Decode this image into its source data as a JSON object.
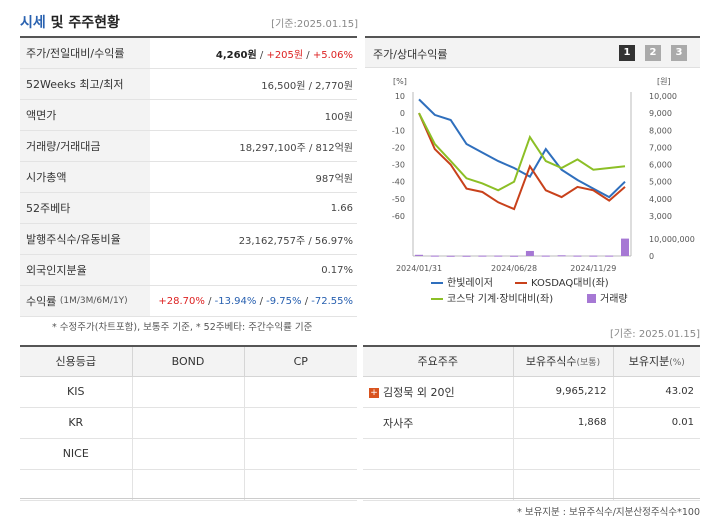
{
  "header": {
    "title_part1": "시세",
    "title_part2": " 및 주주현황",
    "date": "[기준:2025.01.15]"
  },
  "summary": {
    "rows": [
      {
        "label": "주가/전일대비/수익률",
        "price": "4,260원",
        "sep1": " / ",
        "change": "+205원",
        "sep2": " / ",
        "rate": "+5.06%"
      },
      {
        "label": "52Weeks 최고/최저",
        "value": "16,500원 / 2,770원"
      },
      {
        "label": "액면가",
        "value": "100원"
      },
      {
        "label": "거래량/거래대금",
        "value": "18,297,100주 / 812억원"
      },
      {
        "label": "시가총액",
        "value": "987억원"
      },
      {
        "label": "52주베타",
        "value": "1.66"
      },
      {
        "label": "발행주식수/유동비율",
        "value": "23,162,757주 / 56.97%"
      },
      {
        "label": "외국인지분율",
        "value": "0.17%"
      },
      {
        "label": "수익률",
        "label_sub": "(1M/3M/6M/1Y)",
        "r1": "+28.70%",
        "r2": "-13.94%",
        "r3": "-9.75%",
        "r4": "-72.55%",
        "sep": " / "
      }
    ],
    "footnote": "* 수정주가(차트포함), 보통주 기준, * 52주베타: 주간수익률 기준"
  },
  "chart": {
    "title": "주가/상대수익률",
    "pages": [
      "1",
      "2",
      "3"
    ],
    "left_unit": "[%]",
    "right_unit": "[원]",
    "left_ticks": [
      "10",
      "0",
      "-10",
      "-20",
      "-30",
      "-40",
      "-50",
      "-60"
    ],
    "right_ticks": [
      "10,000",
      "9,000",
      "8,000",
      "7,000",
      "6,000",
      "5,000",
      "4,000",
      "3,000"
    ],
    "volume_tick": "10,000,000",
    "volume_zero": "0",
    "x_ticks": [
      "2024/01/31",
      "2024/06/28",
      "2024/11/29"
    ],
    "legend": {
      "s1": "한빛레이저",
      "s2": "KOSDAQ대비(좌)",
      "s3": "코스닥 기계·장비대비(좌)",
      "s4": "거래량"
    },
    "colors": {
      "s1": "#2f6fbd",
      "s2": "#c8411b",
      "s3": "#8cbf26",
      "s4": "#a678d4"
    }
  },
  "chart_data": {
    "type": "line",
    "x": [
      "2024/01/31",
      "",
      "",
      "",
      "",
      "",
      "2024/06/28",
      "",
      "",
      "",
      "",
      "2024/11/29",
      "",
      ""
    ],
    "series": [
      {
        "name": "한빛레이저",
        "axis": "right",
        "values": [
          9800,
          8900,
          8600,
          7200,
          6700,
          6200,
          5800,
          5300,
          6900,
          5700,
          5100,
          4600,
          4100,
          5000
        ]
      },
      {
        "name": "KOSDAQ대비(좌)",
        "axis": "left",
        "values": [
          0,
          -21,
          -30,
          -44,
          -46,
          -52,
          -56,
          -31,
          -45,
          -49,
          -43,
          -45,
          -51,
          -43
        ]
      },
      {
        "name": "코스닥 기계·장비대비(좌)",
        "axis": "left",
        "values": [
          0,
          -18,
          -28,
          -38,
          -41,
          -45,
          -40,
          -14,
          -28,
          -32,
          -27,
          -33,
          -32,
          -31
        ]
      },
      {
        "name": "거래량",
        "axis": "volume",
        "values": [
          1000000,
          300000,
          200000,
          200000,
          300000,
          300000,
          200000,
          4200000,
          300000,
          600000,
          300000,
          300000,
          300000,
          14500000
        ]
      }
    ],
    "ylim_left": [
      -60,
      10
    ],
    "ylim_right": [
      3000,
      10000
    ],
    "ylim_volume": [
      0,
      15000000
    ]
  },
  "credit": {
    "headers": [
      "신용등급",
      "BOND",
      "CP"
    ],
    "rows": [
      [
        "KIS",
        "",
        ""
      ],
      [
        "KR",
        "",
        ""
      ],
      [
        "NICE",
        "",
        ""
      ],
      [
        "",
        "",
        ""
      ]
    ]
  },
  "shareholders": {
    "date": "[기준: 2025.01.15]",
    "headers": {
      "c1": "주요주주",
      "c2": "보유주식수",
      "c2_sub": "(보통)",
      "c3": "보유지분",
      "c3_sub": "(%)"
    },
    "rows": [
      {
        "name": "김정묵 외 20인",
        "plus": "+",
        "shares": "9,965,212",
        "pct": "43.02"
      },
      {
        "name": "자사주",
        "plus": "",
        "shares": "1,868",
        "pct": "0.01"
      },
      {
        "name": "",
        "plus": "",
        "shares": "",
        "pct": ""
      },
      {
        "name": "",
        "plus": "",
        "shares": "",
        "pct": ""
      }
    ],
    "footnote": "* 보유지분 : 보유주식수/지분산정주식수*100"
  }
}
